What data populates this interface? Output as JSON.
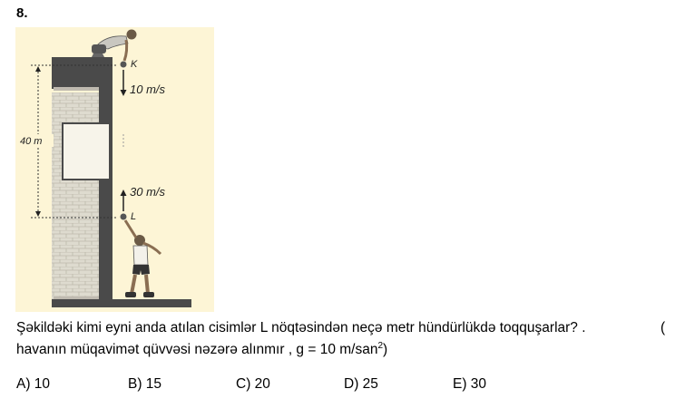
{
  "question": {
    "number": "8.",
    "line1": "Şəkildəki kimi eyni anda atılan cisimlər L nöqtəsindən neçə metr hündürlükdə toqquşarlar? .",
    "line1_trailing": "(",
    "line2_before_sup": "havanın müqavimət qüvvəsi nəzərə alınmır , g = 10 m/san",
    "line2_sup": "2",
    "line2_after_sup": ")"
  },
  "figure": {
    "labels": {
      "top_point": "K",
      "bottom_point": "L",
      "height": "40 m",
      "top_speed": "10 m/s",
      "bottom_speed": "30 m/s"
    },
    "colors": {
      "background": "#fdf5d6",
      "wall": "#4a4a4a",
      "bricks": "#d6d3c6",
      "window": "#f7f4ea"
    }
  },
  "options": [
    {
      "label": "A) 10"
    },
    {
      "label": "B) 15"
    },
    {
      "label": "C) 20"
    },
    {
      "label": "D) 25"
    },
    {
      "label": "E) 30"
    }
  ]
}
